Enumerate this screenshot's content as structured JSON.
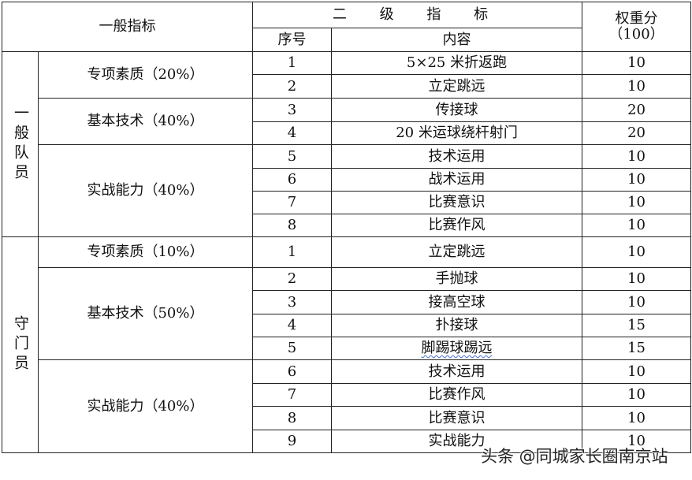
{
  "header": {
    "general_indicator": "一般指标",
    "secondary_indicator": "二 级 指 标",
    "weight": "权重分",
    "weight_total": "（100）",
    "seq": "序号",
    "content": "内容"
  },
  "groups": [
    {
      "role": "一般队员",
      "categories": [
        {
          "name": "专项素质（20%）",
          "items": [
            {
              "seq": "1",
              "content": "5×25 米折返跑",
              "score": "10"
            },
            {
              "seq": "2",
              "content": "立定跳远",
              "score": "10"
            }
          ]
        },
        {
          "name": "基本技术（40%）",
          "items": [
            {
              "seq": "3",
              "content": "传接球",
              "score": "20"
            },
            {
              "seq": "4",
              "content": "20 米运球绕杆射门",
              "score": "20"
            }
          ]
        },
        {
          "name": "实战能力（40%）",
          "items": [
            {
              "seq": "5",
              "content": "技术运用",
              "score": "10"
            },
            {
              "seq": "6",
              "content": "战术运用",
              "score": "10"
            },
            {
              "seq": "7",
              "content": "比赛意识",
              "score": "10"
            },
            {
              "seq": "8",
              "content": "比赛作风",
              "score": "10"
            }
          ]
        }
      ]
    },
    {
      "role": "守门员",
      "categories": [
        {
          "name": "专项素质（10%）",
          "items": [
            {
              "seq": "1",
              "content": "立定跳远",
              "score": "10"
            }
          ]
        },
        {
          "name": "基本技术（50%）",
          "items": [
            {
              "seq": "2",
              "content": "手抛球",
              "score": "10"
            },
            {
              "seq": "3",
              "content": "接高空球",
              "score": "10"
            },
            {
              "seq": "4",
              "content": "扑接球",
              "score": "15"
            },
            {
              "seq": "5",
              "content": "脚踢球踢远",
              "score": "15"
            }
          ]
        },
        {
          "name": "实战能力（40%）",
          "items": [
            {
              "seq": "6",
              "content": "技术运用",
              "score": "10"
            },
            {
              "seq": "7",
              "content": "比赛作风",
              "score": "10"
            },
            {
              "seq": "8",
              "content": "比赛意识",
              "score": "10"
            },
            {
              "seq": "9",
              "content": "实战能力",
              "score": "10"
            }
          ]
        }
      ]
    }
  ],
  "watermark": "头条 @同城家长圈南京站"
}
